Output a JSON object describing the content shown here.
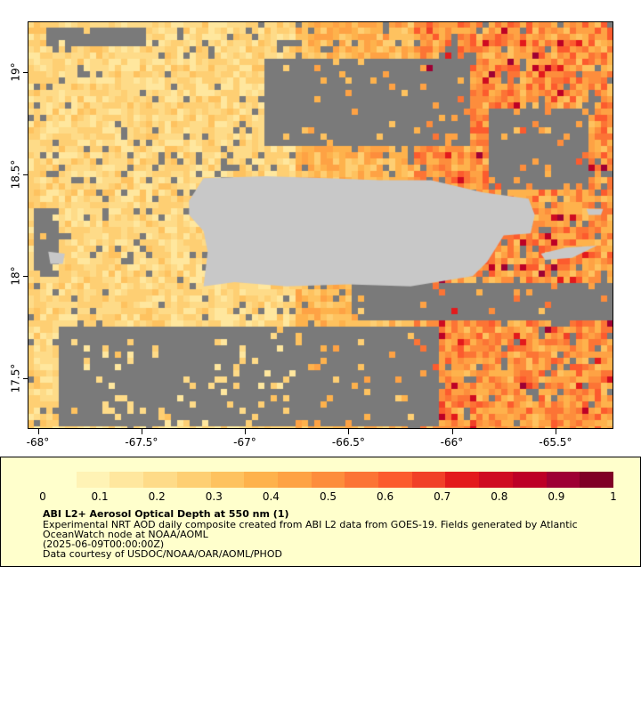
{
  "map": {
    "lon_range": [
      -68.05,
      -65.22
    ],
    "lat_range": [
      17.25,
      19.25
    ],
    "colors": {
      "no_data": "#7a7a7a",
      "land": "#c8c8c8",
      "frame": "#000000"
    },
    "lon_ticks": [
      {
        "value": -68,
        "label": "-68°"
      },
      {
        "value": -67.5,
        "label": "-67.5°"
      },
      {
        "value": -67,
        "label": "-67°"
      },
      {
        "value": -66.5,
        "label": "-66.5°"
      },
      {
        "value": -66,
        "label": "-66°"
      },
      {
        "value": -65.5,
        "label": "-65.5°"
      }
    ],
    "lat_ticks": [
      {
        "value": 19,
        "label": "19°"
      },
      {
        "value": 18.5,
        "label": "18.5°"
      },
      {
        "value": 18,
        "label": "18°"
      },
      {
        "value": 17.5,
        "label": "17.5°"
      }
    ],
    "land_polygons": [
      {
        "name": "Puerto Rico",
        "points": [
          [
            -67.27,
            18.37
          ],
          [
            -67.2,
            18.48
          ],
          [
            -66.9,
            18.49
          ],
          [
            -66.6,
            18.48
          ],
          [
            -66.35,
            18.47
          ],
          [
            -66.1,
            18.47
          ],
          [
            -65.85,
            18.41
          ],
          [
            -65.63,
            18.38
          ],
          [
            -65.6,
            18.3
          ],
          [
            -65.62,
            18.21
          ],
          [
            -65.75,
            18.2
          ],
          [
            -65.83,
            18.07
          ],
          [
            -65.9,
            18.0
          ],
          [
            -66.2,
            17.95
          ],
          [
            -66.5,
            17.96
          ],
          [
            -66.8,
            17.95
          ],
          [
            -67.05,
            17.97
          ],
          [
            -67.2,
            17.95
          ],
          [
            -67.18,
            18.12
          ],
          [
            -67.2,
            18.22
          ],
          [
            -67.27,
            18.3
          ]
        ]
      },
      {
        "name": "Vieques",
        "points": [
          [
            -65.57,
            18.11
          ],
          [
            -65.45,
            18.14
          ],
          [
            -65.3,
            18.15
          ],
          [
            -65.42,
            18.09
          ],
          [
            -65.55,
            18.08
          ]
        ]
      },
      {
        "name": "Culebra",
        "points": [
          [
            -65.35,
            18.33
          ],
          [
            -65.27,
            18.33
          ],
          [
            -65.28,
            18.3
          ],
          [
            -65.34,
            18.3
          ]
        ]
      },
      {
        "name": "Mona Island",
        "points": [
          [
            -67.95,
            18.12
          ],
          [
            -67.87,
            18.11
          ],
          [
            -67.88,
            18.06
          ],
          [
            -67.94,
            18.06
          ]
        ]
      }
    ]
  },
  "colorbar": {
    "min": 0,
    "max": 1,
    "colors": [
      "#ffffcc",
      "#fff3b5",
      "#ffe79e",
      "#fedb88",
      "#fecf73",
      "#fec25f",
      "#feb24c",
      "#fea244",
      "#fd8d3c",
      "#fc7435",
      "#fc5b2e",
      "#f14028",
      "#e31a1c",
      "#cf0b21",
      "#bd0026",
      "#9e0034",
      "#800026"
    ],
    "ticks": [
      "0",
      "0.1",
      "0.2",
      "0.3",
      "0.4",
      "0.5",
      "0.6",
      "0.7",
      "0.8",
      "0.9",
      "1"
    ]
  },
  "legend": {
    "title": "ABI L2+ Aerosol Optical Depth at 550 nm (1)",
    "line1": "Experimental NRT AOD daily composite created from ABI L2 data from GOES-19. Fields generated by Atlantic",
    "line2": "OceanWatch node at NOAA/AOML",
    "line3": "(2025-06-09T00:00:00Z)",
    "line4": "Data courtesy of USDOC/NOAA/OAR/AOML/PHOD"
  }
}
